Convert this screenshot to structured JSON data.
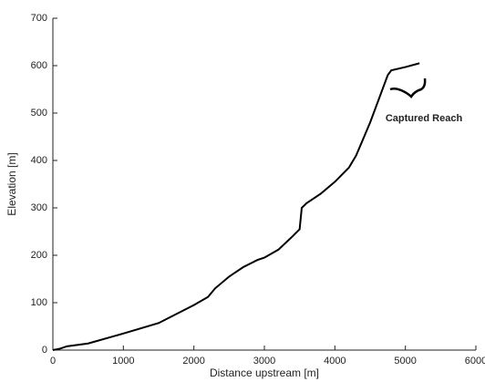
{
  "chart_data": {
    "type": "line",
    "xlabel": "Distance upstream [m]",
    "ylabel": "Elevation [m]",
    "annotation": "Captured Reach",
    "x": [
      0,
      100,
      200,
      500,
      1000,
      1500,
      2000,
      2200,
      2300,
      2500,
      2700,
      2900,
      3000,
      3200,
      3400,
      3500,
      3530,
      3600,
      3800,
      4000,
      4200,
      4300,
      4400,
      4500,
      4600,
      4700,
      4750,
      4800,
      5000,
      5200
    ],
    "values": [
      0,
      3,
      8,
      14,
      35,
      57,
      95,
      112,
      130,
      155,
      175,
      190,
      195,
      212,
      240,
      255,
      300,
      310,
      330,
      355,
      385,
      410,
      445,
      480,
      520,
      560,
      580,
      590,
      597,
      605
    ],
    "color": "#000000",
    "xlim": [
      0,
      6000
    ],
    "xticks": [
      0,
      1000,
      2000,
      3000,
      4000,
      5000,
      6000
    ],
    "ylim": [
      0,
      700
    ],
    "yticks": [
      0,
      100,
      200,
      300,
      400,
      500,
      600,
      700
    ],
    "grid": false
  }
}
